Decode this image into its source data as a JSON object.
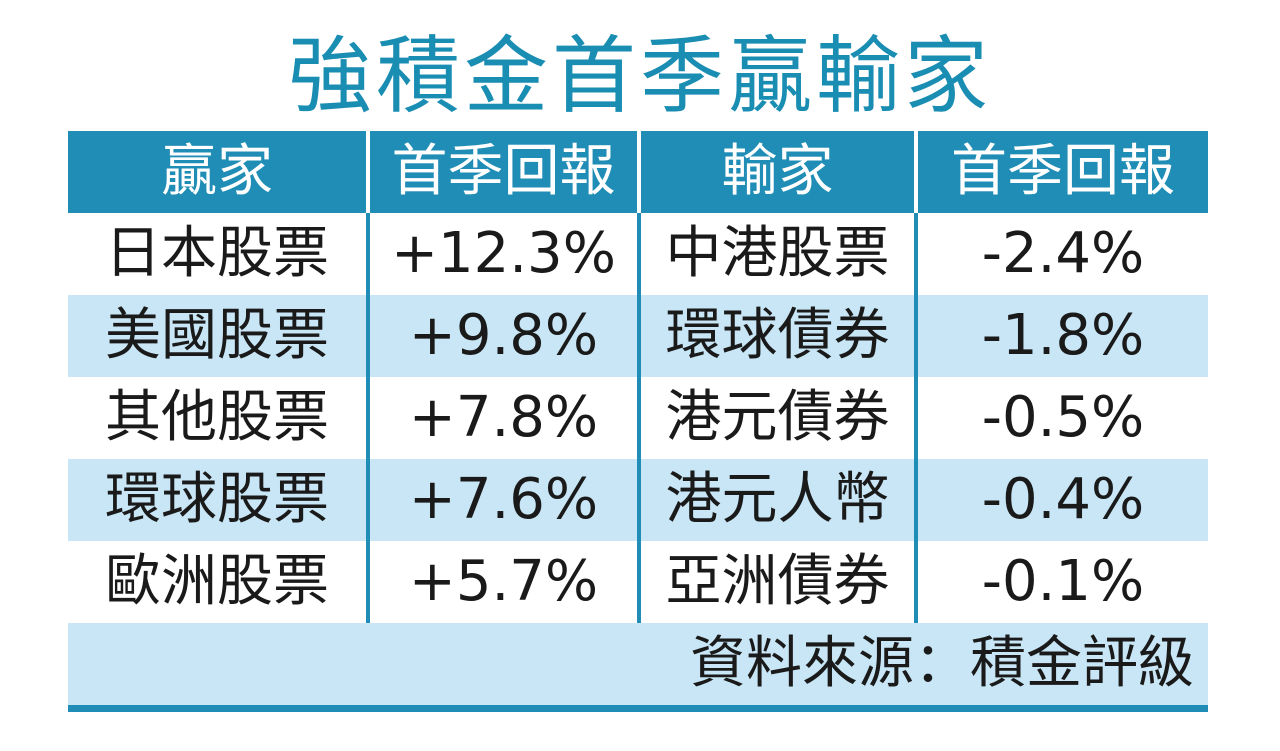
{
  "title": "強積金首季贏輸家",
  "table": {
    "header": [
      "贏家",
      "首季回報",
      "輸家",
      "首季回報"
    ],
    "rows": [
      [
        "日本股票",
        "+12.3%",
        "中港股票",
        "-2.4%"
      ],
      [
        "美國股票",
        "+9.8%",
        "環球債券",
        "-1.8%"
      ],
      [
        "其他股票",
        "+7.8%",
        "港元債券",
        "-0.5%"
      ],
      [
        "環球股票",
        "+7.6%",
        "港元人幣",
        "-0.4%"
      ],
      [
        "歐洲股票",
        "+5.7%",
        "亞洲債券",
        "-0.1%"
      ]
    ],
    "source": "資料來源：積金評級"
  }
}
